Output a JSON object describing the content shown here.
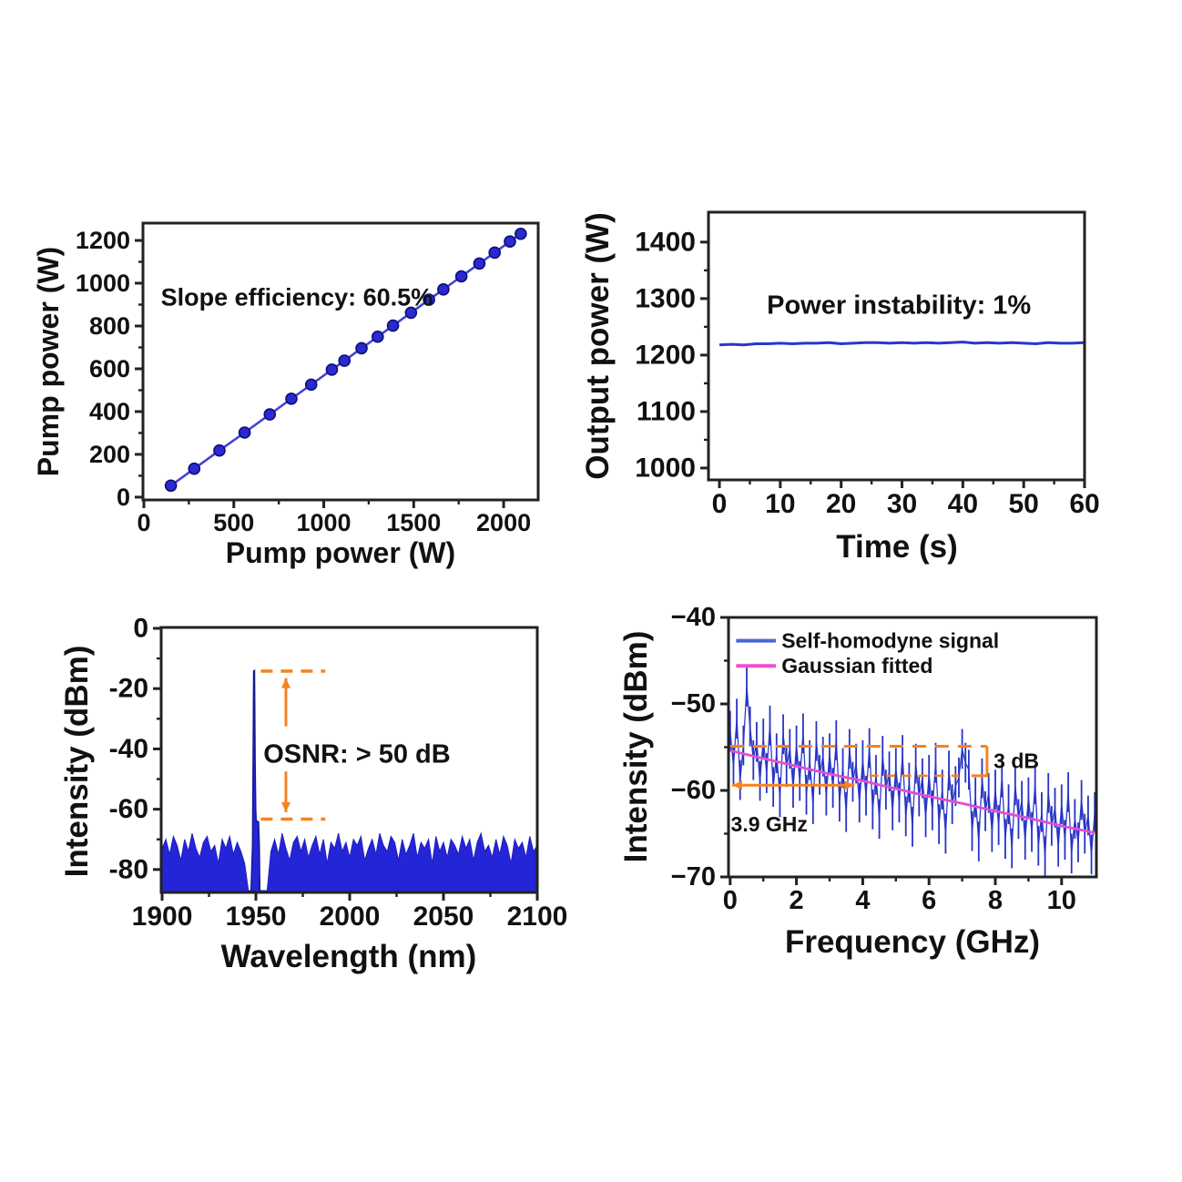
{
  "figure": {
    "description": "Four-panel laser characterization figure",
    "background": "#ffffff"
  },
  "colors": {
    "axis": "#222222",
    "tick_text": "#111111",
    "blue_line": "#4343d6",
    "blue_marker": "#2a2ad0",
    "blue_marker_edge": "#0e0e78",
    "stability_line": "#2736cf",
    "spectrum_fill": "#2525d8",
    "spectrum_edge": "#1f1fc0",
    "noise_line": "#2633c5",
    "fit_line": "#e04fd4",
    "orange": "#f5831e",
    "red": "#e23333"
  },
  "chart_data": [
    {
      "id": "p1",
      "name": "slope-efficiency",
      "type": "scatter",
      "xlabel": "Pump power (W)",
      "ylabel": "Pump power (W)",
      "xlim": [
        -5,
        2192
      ],
      "ylim": [
        -13,
        1281
      ],
      "xticks": [
        0,
        500,
        1000,
        1500,
        2000
      ],
      "xtick_labels": [
        "0",
        "500",
        "1000",
        "1500",
        "2000"
      ],
      "yticks": [
        0,
        200,
        400,
        600,
        800,
        1000,
        1200
      ],
      "ytick_labels": [
        "0",
        "200",
        "400",
        "600",
        "800",
        "1000",
        "1200"
      ],
      "points": [
        [
          150,
          54
        ],
        [
          280,
          133
        ],
        [
          420,
          218
        ],
        [
          560,
          302
        ],
        [
          700,
          387
        ],
        [
          820,
          460
        ],
        [
          930,
          526
        ],
        [
          1045,
          596
        ],
        [
          1115,
          638
        ],
        [
          1210,
          696
        ],
        [
          1300,
          750
        ],
        [
          1385,
          802
        ],
        [
          1485,
          862
        ],
        [
          1585,
          923
        ],
        [
          1665,
          971
        ],
        [
          1765,
          1032
        ],
        [
          1865,
          1092
        ],
        [
          1950,
          1143
        ],
        [
          2035,
          1195
        ],
        [
          2095,
          1231
        ]
      ],
      "annotations": [
        {
          "kind": "text",
          "text": "Slope efficiency: 60.5%",
          "x": 850,
          "y": 935,
          "color": "red",
          "size": 27,
          "anchor": "middle"
        }
      ]
    },
    {
      "id": "p2",
      "name": "power-stability",
      "type": "line",
      "xlabel": "Time (s)",
      "ylabel": "Output power (W)",
      "xlim": [
        -1.8,
        60
      ],
      "ylim": [
        979,
        1453
      ],
      "xticks": [
        0,
        10,
        20,
        30,
        40,
        50,
        60
      ],
      "xtick_labels": [
        "0",
        "10",
        "20",
        "30",
        "40",
        "50",
        "60"
      ],
      "yticks": [
        1000,
        1100,
        1200,
        1300,
        1400
      ],
      "ytick_labels": [
        "1000",
        "1100",
        "1200",
        "1300",
        "1400"
      ],
      "points": [
        [
          0,
          1218
        ],
        [
          2,
          1219
        ],
        [
          4,
          1218
        ],
        [
          6,
          1220
        ],
        [
          8,
          1220
        ],
        [
          10,
          1221
        ],
        [
          12,
          1220
        ],
        [
          14,
          1221
        ],
        [
          16,
          1221
        ],
        [
          18,
          1222
        ],
        [
          20,
          1220
        ],
        [
          22,
          1221
        ],
        [
          24,
          1222
        ],
        [
          26,
          1222
        ],
        [
          28,
          1221
        ],
        [
          30,
          1222
        ],
        [
          32,
          1221
        ],
        [
          34,
          1222
        ],
        [
          36,
          1221
        ],
        [
          38,
          1222
        ],
        [
          40,
          1223
        ],
        [
          42,
          1221
        ],
        [
          44,
          1222
        ],
        [
          46,
          1221
        ],
        [
          48,
          1222
        ],
        [
          50,
          1221
        ],
        [
          52,
          1220
        ],
        [
          54,
          1222
        ],
        [
          56,
          1221
        ],
        [
          58,
          1221
        ],
        [
          60,
          1222
        ]
      ],
      "annotations": [
        {
          "kind": "text",
          "text": "Power instability: 1%",
          "x": 29.5,
          "y": 1288,
          "color": "orange",
          "size": 29,
          "anchor": "middle"
        }
      ]
    },
    {
      "id": "p3",
      "name": "optical-spectrum",
      "type": "spectrum",
      "xlabel": "Wavelength (nm)",
      "ylabel": "Intensity (dBm)",
      "xlim": [
        1899.5,
        2100
      ],
      "ylim": [
        -87.6,
        0.3
      ],
      "xticks": [
        1900,
        1950,
        2000,
        2050,
        2100
      ],
      "xtick_labels": [
        "1900",
        "1950",
        "2000",
        "2050",
        "2100"
      ],
      "yticks": [
        0,
        -20,
        -40,
        -60,
        -80
      ],
      "ytick_labels": [
        "0",
        "-20",
        "-40",
        "-60",
        "-80"
      ],
      "baseline": -87.5,
      "noise_x_start": 1900,
      "noise_x_step": 2,
      "noise_tops": [
        -73,
        -70,
        -75,
        -69,
        -72,
        -77,
        -70,
        -74,
        -68,
        -73,
        -76,
        -71,
        -69,
        -74,
        -72,
        -78,
        -70,
        -73,
        -69,
        -75,
        -71,
        -74,
        -78,
        -87,
        -87,
        -87,
        -87,
        -87,
        -87,
        -74,
        -70,
        -75,
        -68,
        -73,
        -77,
        -71,
        -69,
        -74,
        -70,
        -76,
        -72,
        -69,
        -75,
        -70,
        -78,
        -71,
        -73,
        -68,
        -74,
        -71,
        -76,
        -70,
        -72,
        -69,
        -77,
        -73,
        -70,
        -75,
        -68,
        -72,
        -74,
        -69,
        -71,
        -77,
        -70,
        -75,
        -72,
        -68,
        -76,
        -71,
        -73,
        -70,
        -78,
        -69,
        -74,
        -71,
        -76,
        -70,
        -72,
        -75,
        -69,
        -73,
        -70,
        -77,
        -71,
        -68,
        -74,
        -72,
        -76,
        -70,
        -75,
        -69,
        -72,
        -78,
        -70,
        -73,
        -71,
        -76,
        -69,
        -74,
        -72
      ],
      "peak": [
        [
          1947.4,
          -87.4
        ],
        [
          1948.2,
          -72
        ],
        [
          1948.55,
          -40
        ],
        [
          1948.8,
          -14.2
        ],
        [
          1949.25,
          -14.0
        ],
        [
          1949.6,
          -45
        ],
        [
          1949.9,
          -60
        ],
        [
          1950.15,
          -63.8
        ],
        [
          1951.4,
          -64.2
        ],
        [
          1951.8,
          -72
        ],
        [
          1952.1,
          -87.4
        ]
      ],
      "peak_wavelength_nm": 1949,
      "peak_level_dBm": -14,
      "annotations": [
        {
          "kind": "dash",
          "x1": 1952.6,
          "y1": -14.2,
          "x2": 1987,
          "y2": -14.2,
          "w": 3.5,
          "dash": "13 9"
        },
        {
          "kind": "dash",
          "x1": 1952.6,
          "y1": -63.3,
          "x2": 1987,
          "y2": -63.3,
          "w": 3.5,
          "dash": "13 9"
        },
        {
          "kind": "arrow",
          "x1": 1966,
          "y1": -32.5,
          "x2": 1966,
          "y2": -16.5,
          "w": 3,
          "head": "end"
        },
        {
          "kind": "arrow",
          "x1": 1966,
          "y1": -47.5,
          "x2": 1966,
          "y2": -61.0,
          "w": 3,
          "head": "end"
        },
        {
          "kind": "text",
          "text": "OSNR:  > 50 dB",
          "x": 1954,
          "y": -41.8,
          "color": "orange",
          "size": 29,
          "anchor": "start"
        }
      ]
    },
    {
      "id": "p4",
      "name": "rf-spectrum",
      "type": "noisy-line",
      "xlabel": "Frequency (GHz)",
      "ylabel": "Intensity (dBm)",
      "xlim": [
        -0.05,
        11.05
      ],
      "ylim": [
        -70,
        -40
      ],
      "xticks": [
        0,
        2,
        4,
        6,
        8,
        10
      ],
      "xtick_labels": [
        "0",
        "2",
        "4",
        "6",
        "8",
        "10"
      ],
      "yticks": [
        -40,
        -50,
        -60,
        -70
      ],
      "ytick_labels": [
        "−40",
        "−50",
        "−60",
        "−70"
      ],
      "f_start": 0,
      "f_step": 0.1,
      "bar_half": 2.3,
      "values": [
        -53.1,
        -57.2,
        -51.7,
        -58.8,
        -54.8,
        -48.0,
        -52.6,
        -56.5,
        -54.4,
        -58.9,
        -54.0,
        -58.0,
        -52.5,
        -59.6,
        -55.7,
        -60.8,
        -53.5,
        -57.3,
        -55.2,
        -59.7,
        -54.8,
        -58.9,
        -53.4,
        -60.5,
        -56.5,
        -61.6,
        -54.3,
        -58.2,
        -56.1,
        -60.6,
        -55.7,
        -59.7,
        -54.2,
        -61.3,
        -57.4,
        -62.5,
        -55.2,
        -59.0,
        -56.9,
        -61.4,
        -56.5,
        -60.6,
        -55.1,
        -62.2,
        -58.2,
        -63.3,
        -56.0,
        -59.9,
        -57.8,
        -62.3,
        -57.4,
        -61.4,
        -55.9,
        -63.0,
        -59.1,
        -64.2,
        -56.9,
        -60.7,
        -58.6,
        -63.1,
        -58.2,
        -62.3,
        -56.8,
        -63.9,
        -59.9,
        -65.0,
        -57.7,
        -61.6,
        -59.5,
        -58.5,
        -55.2,
        -56.8,
        -57.6,
        -64.7,
        -60.8,
        -65.9,
        -58.6,
        -62.4,
        -60.3,
        -64.8,
        -59.9,
        -64.0,
        -58.5,
        -65.6,
        -61.6,
        -66.7,
        -59.4,
        -63.3,
        -61.2,
        -65.7,
        -60.8,
        -64.8,
        -59.3,
        -66.4,
        -62.5,
        -67.6,
        -60.3,
        -64.1,
        -62.0,
        -66.5,
        -61.6,
        -65.7,
        -60.2,
        -67.3,
        -63.3,
        -66.0,
        -61.1,
        -65.0,
        -62.9,
        -67.4,
        -62.5
      ],
      "fit": [
        [
          0,
          -55.4
        ],
        [
          1,
          -56.3
        ],
        [
          2,
          -57.2
        ],
        [
          3,
          -58.1
        ],
        [
          4,
          -58.9
        ],
        [
          5,
          -59.8
        ],
        [
          6,
          -60.7
        ],
        [
          7,
          -61.5
        ],
        [
          8,
          -62.4
        ],
        [
          9,
          -63.2
        ],
        [
          10,
          -64.1
        ],
        [
          11,
          -64.9
        ]
      ],
      "legend": {
        "x": 0.18,
        "line_len": 1.2,
        "text_x": 1.55,
        "ys": [
          -42.7,
          -45.6
        ],
        "font": 23,
        "items": [
          {
            "label": "Self-homodyne signal",
            "line": "#4a66d8",
            "text": "#1c2f9c"
          },
          {
            "label": "Gaussian fitted",
            "line": "#ee4fd4",
            "text": "#d63ec8"
          }
        ]
      },
      "annotations": [
        {
          "kind": "dash",
          "x1": 0,
          "y1": -54.9,
          "x2": 7.75,
          "y2": -54.9,
          "w": 3,
          "dash": "15 10"
        },
        {
          "kind": "dash",
          "x1": 4.2,
          "y1": -58.3,
          "x2": 6.9,
          "y2": -58.3,
          "w": 2.5,
          "dash": "10 8"
        },
        {
          "kind": "path",
          "pts": [
            [
              7.75,
              -54.9
            ],
            [
              7.75,
              -58.3
            ],
            [
              7.28,
              -58.3
            ]
          ],
          "w": 3
        },
        {
          "kind": "arrow",
          "x1": 0.06,
          "y1": -59.4,
          "x2": 3.75,
          "y2": -59.4,
          "w": 3,
          "head": "both"
        },
        {
          "kind": "text",
          "text": "3 dB",
          "x": 7.95,
          "y": -56.6,
          "color": "orange",
          "size": 23,
          "anchor": "start"
        },
        {
          "kind": "text",
          "text": "3.9 GHz",
          "x": 0.02,
          "y": -63.9,
          "color": "orange",
          "size": 23,
          "anchor": "start"
        }
      ]
    }
  ]
}
